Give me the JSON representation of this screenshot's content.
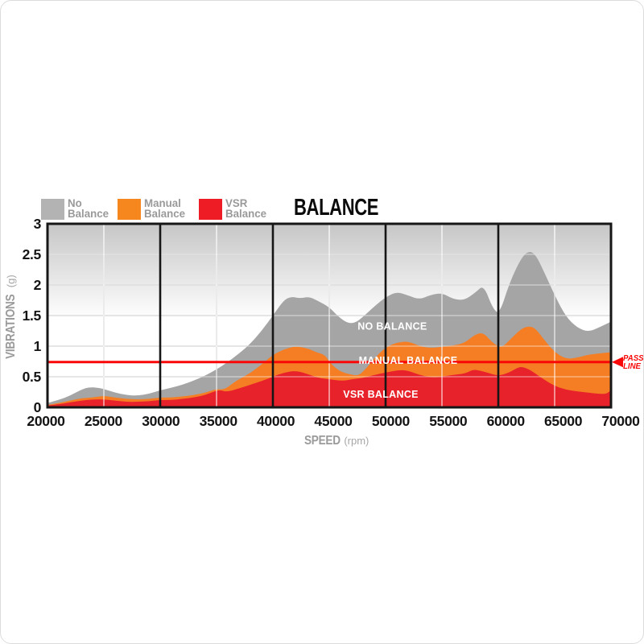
{
  "title": "BALANCE",
  "legend": [
    {
      "line1": "No",
      "line2": "Balance",
      "color": "#b3b3b3"
    },
    {
      "line1": "Manual",
      "line2": "Balance",
      "color": "#f6871f"
    },
    {
      "line1": "VSR",
      "line2": "Balance",
      "color": "#ee1c25"
    }
  ],
  "chart_data": {
    "type": "area",
    "title": "BALANCE",
    "xlabel": "SPEED",
    "xlabel_unit": "(rpm)",
    "ylabel": "VIBRATIONS",
    "ylabel_unit": "(g)",
    "xlim": [
      20000,
      70000
    ],
    "ylim": [
      0,
      3
    ],
    "x_ticks": [
      20000,
      25000,
      30000,
      35000,
      40000,
      45000,
      50000,
      55000,
      60000,
      65000,
      70000
    ],
    "y_ticks": [
      0,
      0.5,
      1,
      1.5,
      2,
      2.5,
      3
    ],
    "major_vlines": [
      30000,
      40000,
      50000,
      60000
    ],
    "grid": true,
    "bg_top": "#c6c6c6",
    "pass_line": {
      "value": 0.74,
      "label_line1": "PASS",
      "label_line2": "LINE",
      "color": "#f90808"
    },
    "series": [
      {
        "name": "NO BALANCE",
        "color": "#a5a5a6",
        "label": "NO BALANCE",
        "label_x": 50600,
        "label_y": 1.32,
        "points": [
          [
            20000,
            0.07
          ],
          [
            21000,
            0.12
          ],
          [
            22000,
            0.19
          ],
          [
            23000,
            0.29
          ],
          [
            23700,
            0.33
          ],
          [
            24500,
            0.32
          ],
          [
            25200,
            0.29
          ],
          [
            26000,
            0.24
          ],
          [
            27000,
            0.2
          ],
          [
            28000,
            0.19
          ],
          [
            29000,
            0.22
          ],
          [
            30000,
            0.28
          ],
          [
            31000,
            0.32
          ],
          [
            32000,
            0.37
          ],
          [
            33000,
            0.44
          ],
          [
            34000,
            0.52
          ],
          [
            35000,
            0.62
          ],
          [
            36000,
            0.74
          ],
          [
            37000,
            0.88
          ],
          [
            38000,
            1.04
          ],
          [
            39000,
            1.25
          ],
          [
            40000,
            1.5
          ],
          [
            41000,
            1.76
          ],
          [
            41700,
            1.81
          ],
          [
            42400,
            1.78
          ],
          [
            43200,
            1.81
          ],
          [
            44000,
            1.74
          ],
          [
            45000,
            1.64
          ],
          [
            45800,
            1.48
          ],
          [
            46700,
            1.37
          ],
          [
            47400,
            1.39
          ],
          [
            48000,
            1.48
          ],
          [
            49000,
            1.65
          ],
          [
            50000,
            1.8
          ],
          [
            51000,
            1.89
          ],
          [
            52000,
            1.83
          ],
          [
            53000,
            1.76
          ],
          [
            54000,
            1.84
          ],
          [
            55000,
            1.87
          ],
          [
            56000,
            1.77
          ],
          [
            57000,
            1.75
          ],
          [
            58000,
            1.88
          ],
          [
            58700,
            2.0
          ],
          [
            59500,
            1.62
          ],
          [
            60100,
            1.52
          ],
          [
            61000,
            2.04
          ],
          [
            62000,
            2.43
          ],
          [
            62700,
            2.56
          ],
          [
            63300,
            2.5
          ],
          [
            64000,
            2.24
          ],
          [
            65000,
            1.83
          ],
          [
            66000,
            1.48
          ],
          [
            67000,
            1.3
          ],
          [
            68000,
            1.23
          ],
          [
            69000,
            1.31
          ],
          [
            70000,
            1.4
          ]
        ]
      },
      {
        "name": "MANUAL BALANCE",
        "color": "#f57e24",
        "label": "MANUAL BALANCE",
        "label_x": 52000,
        "label_y": 0.76,
        "points": [
          [
            20000,
            0.04
          ],
          [
            21000,
            0.07
          ],
          [
            22000,
            0.11
          ],
          [
            23000,
            0.15
          ],
          [
            24000,
            0.16
          ],
          [
            25000,
            0.19
          ],
          [
            26000,
            0.16
          ],
          [
            27000,
            0.14
          ],
          [
            28000,
            0.13
          ],
          [
            29000,
            0.14
          ],
          [
            30000,
            0.16
          ],
          [
            31000,
            0.16
          ],
          [
            32000,
            0.18
          ],
          [
            33000,
            0.2
          ],
          [
            34000,
            0.24
          ],
          [
            35000,
            0.3
          ],
          [
            35700,
            0.29
          ],
          [
            36500,
            0.4
          ],
          [
            37000,
            0.46
          ],
          [
            38000,
            0.56
          ],
          [
            39000,
            0.7
          ],
          [
            40000,
            0.86
          ],
          [
            41000,
            0.95
          ],
          [
            42000,
            1.0
          ],
          [
            43000,
            0.97
          ],
          [
            44000,
            0.89
          ],
          [
            44600,
            0.86
          ],
          [
            45200,
            0.7
          ],
          [
            46000,
            0.58
          ],
          [
            47000,
            0.53
          ],
          [
            47600,
            0.52
          ],
          [
            48200,
            0.62
          ],
          [
            49000,
            0.8
          ],
          [
            50000,
            0.98
          ],
          [
            51000,
            1.06
          ],
          [
            52000,
            1.08
          ],
          [
            53000,
            1.0
          ],
          [
            54000,
            0.97
          ],
          [
            55000,
            0.99
          ],
          [
            56000,
            1.01
          ],
          [
            57000,
            1.05
          ],
          [
            58000,
            1.2
          ],
          [
            58700,
            1.22
          ],
          [
            59500,
            1.05
          ],
          [
            60300,
            0.97
          ],
          [
            61000,
            1.1
          ],
          [
            62000,
            1.28
          ],
          [
            62700,
            1.33
          ],
          [
            63300,
            1.29
          ],
          [
            64000,
            1.12
          ],
          [
            65000,
            0.9
          ],
          [
            66000,
            0.79
          ],
          [
            67000,
            0.81
          ],
          [
            68000,
            0.86
          ],
          [
            69000,
            0.88
          ],
          [
            70000,
            0.9
          ]
        ]
      },
      {
        "name": "VSR BALANCE",
        "color": "#e8222b",
        "label": "VSR BALANCE",
        "label_x": 49570,
        "label_y": 0.21,
        "points": [
          [
            20000,
            0.03
          ],
          [
            21000,
            0.05
          ],
          [
            22000,
            0.08
          ],
          [
            23000,
            0.11
          ],
          [
            24000,
            0.13
          ],
          [
            25000,
            0.13
          ],
          [
            26000,
            0.11
          ],
          [
            27000,
            0.09
          ],
          [
            28000,
            0.09
          ],
          [
            29000,
            0.1
          ],
          [
            30000,
            0.12
          ],
          [
            31000,
            0.12
          ],
          [
            32000,
            0.14
          ],
          [
            33000,
            0.16
          ],
          [
            34000,
            0.2
          ],
          [
            35200,
            0.29
          ],
          [
            35900,
            0.25
          ],
          [
            37000,
            0.31
          ],
          [
            38000,
            0.37
          ],
          [
            39000,
            0.43
          ],
          [
            40000,
            0.5
          ],
          [
            41000,
            0.57
          ],
          [
            42000,
            0.6
          ],
          [
            43000,
            0.55
          ],
          [
            44000,
            0.48
          ],
          [
            45000,
            0.46
          ],
          [
            46200,
            0.43
          ],
          [
            47000,
            0.46
          ],
          [
            48000,
            0.48
          ],
          [
            49000,
            0.53
          ],
          [
            50000,
            0.57
          ],
          [
            51300,
            0.61
          ],
          [
            52000,
            0.6
          ],
          [
            53000,
            0.53
          ],
          [
            54000,
            0.49
          ],
          [
            55000,
            0.5
          ],
          [
            56000,
            0.53
          ],
          [
            57000,
            0.55
          ],
          [
            57800,
            0.62
          ],
          [
            58400,
            0.6
          ],
          [
            59000,
            0.57
          ],
          [
            60000,
            0.51
          ],
          [
            61000,
            0.57
          ],
          [
            61900,
            0.67
          ],
          [
            62500,
            0.64
          ],
          [
            63000,
            0.59
          ],
          [
            64000,
            0.46
          ],
          [
            65000,
            0.35
          ],
          [
            66000,
            0.29
          ],
          [
            67000,
            0.26
          ],
          [
            68000,
            0.24
          ],
          [
            69000,
            0.22
          ],
          [
            69600,
            0.22
          ],
          [
            70000,
            0.28
          ]
        ]
      }
    ]
  }
}
